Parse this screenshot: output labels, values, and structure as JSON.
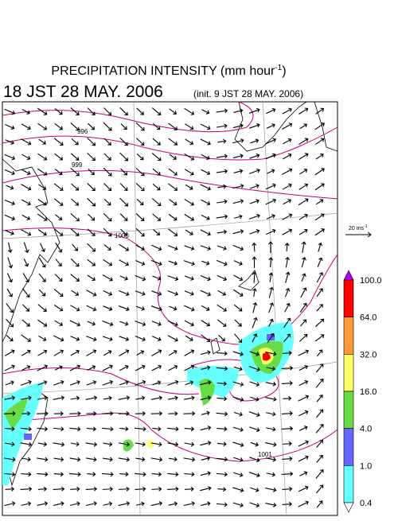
{
  "title": {
    "text": "PRECIPITATION INTENSITY (mm hour",
    "exponent": "-1",
    "close": ")"
  },
  "subtitle": {
    "time": "18 JST 28 MAY. 2006",
    "init": "(init. 9 JST 28 MAY. 2006)"
  },
  "wind_scale": {
    "text": "20 ms",
    "exponent": "-1"
  },
  "isobars": [
    "996",
    "999",
    "1000",
    "1001"
  ],
  "legend": {
    "top_color": "#b000ff",
    "bottom_color": "#ffffff",
    "labels": [
      "100.0",
      "64.0",
      "32.0",
      "16.0",
      "4.0",
      "1.0",
      "0.4"
    ],
    "colors": [
      "#ff0000",
      "#ff9933",
      "#ffff66",
      "#66dd44",
      "#6666ff",
      "#66ffff"
    ]
  }
}
